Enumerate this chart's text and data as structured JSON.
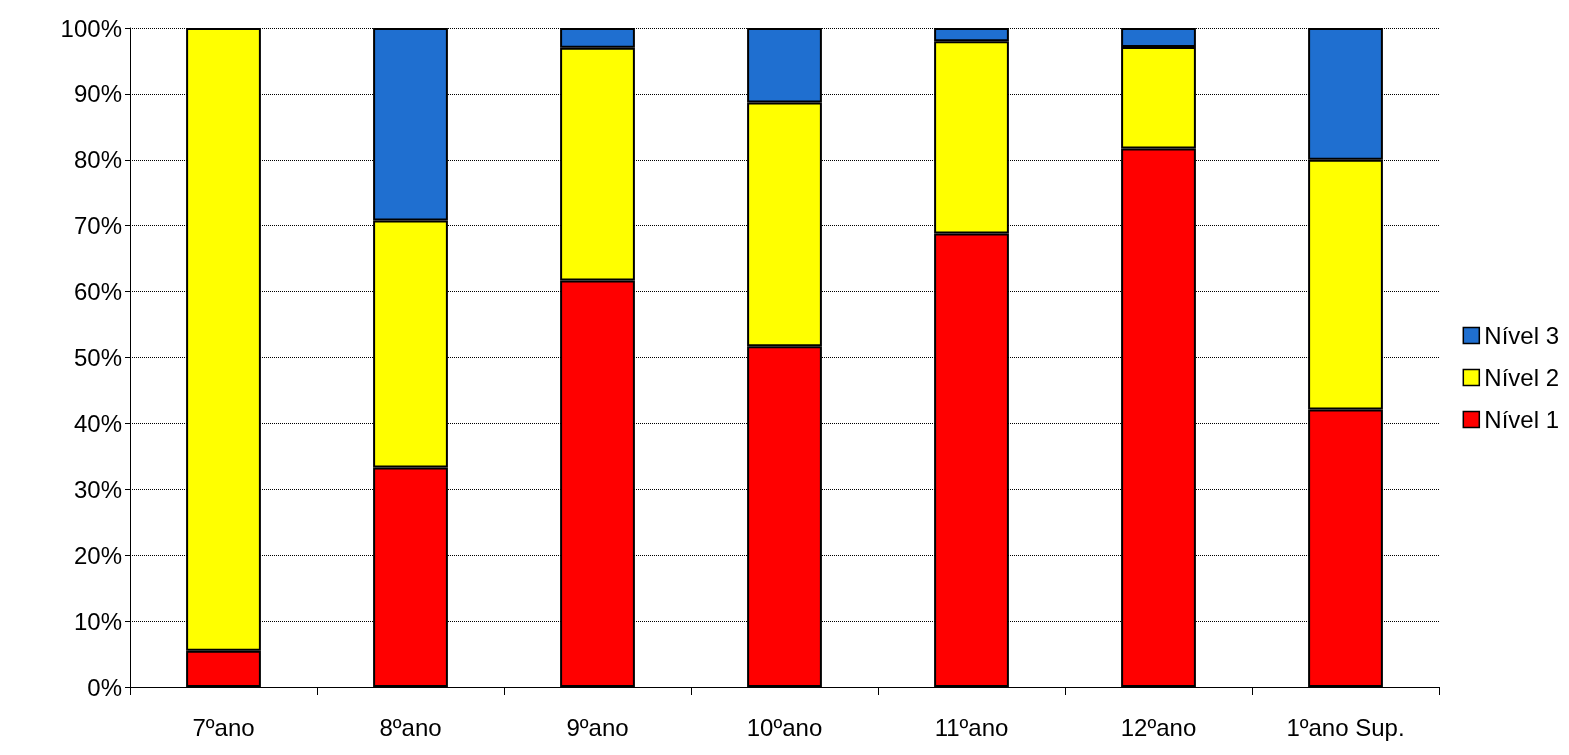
{
  "chart_data": {
    "type": "bar",
    "stacked": true,
    "categories": [
      "7ºano",
      "8ºano",
      "9ºano",
      "10ºano",
      "11ºano",
      "12ºano",
      "1ºano Sup."
    ],
    "series": [
      {
        "name": "Nível 1",
        "color": "#ff0000",
        "values": [
          5.5,
          33.3,
          61.7,
          51.7,
          68.8,
          81.7,
          42.1
        ]
      },
      {
        "name": "Nível 2",
        "color": "#ffff00",
        "values": [
          94.5,
          37.5,
          35.3,
          37,
          29.2,
          15.4,
          37.9
        ]
      },
      {
        "name": "Nível 3",
        "color": "#1f6fd0",
        "values": [
          null,
          29.2,
          3,
          11.3,
          2,
          2.9,
          20
        ]
      }
    ],
    "ylim": [
      0,
      100
    ],
    "yticks": [
      {
        "value": 0,
        "label": "0%"
      },
      {
        "value": 10,
        "label": "10%"
      },
      {
        "value": 20,
        "label": "20%"
      },
      {
        "value": 30,
        "label": "30%"
      },
      {
        "value": 40,
        "label": "40%"
      },
      {
        "value": 50,
        "label": "50%"
      },
      {
        "value": 60,
        "label": "60%"
      },
      {
        "value": 70,
        "label": "70%"
      },
      {
        "value": 80,
        "label": "80%"
      },
      {
        "value": 90,
        "label": "90%"
      },
      {
        "value": 100,
        "label": "100%"
      }
    ],
    "grid": "y",
    "legend": "right"
  }
}
